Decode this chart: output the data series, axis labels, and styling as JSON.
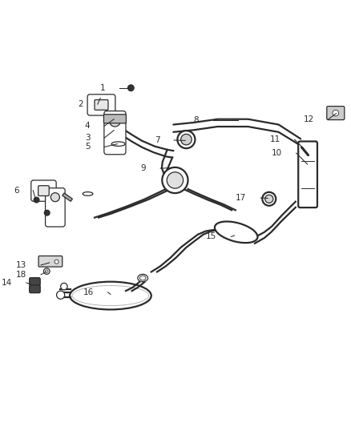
{
  "background_color": "#ffffff",
  "figure_width": 4.38,
  "figure_height": 5.33,
  "dpi": 100,
  "line_color": "#2a2a2a",
  "label_color": "#2a2a2a",
  "label_fontsize": 7.5,
  "lw_main": 1.6,
  "lw_thin": 0.9,
  "leaders": [
    [
      1,
      0.355,
      0.87,
      0.28,
      0.87
    ],
    [
      2,
      0.265,
      0.84,
      0.215,
      0.822
    ],
    [
      3,
      0.305,
      0.745,
      0.235,
      0.723
    ],
    [
      4,
      0.305,
      0.778,
      0.235,
      0.758
    ],
    [
      5,
      0.315,
      0.705,
      0.235,
      0.696
    ],
    [
      6,
      0.075,
      0.538,
      0.025,
      0.568
    ],
    [
      7,
      0.515,
      0.715,
      0.44,
      0.716
    ],
    [
      8,
      0.67,
      0.775,
      0.555,
      0.775
    ],
    [
      9,
      0.48,
      0.635,
      0.4,
      0.633
    ],
    [
      10,
      0.875,
      0.645,
      0.8,
      0.678
    ],
    [
      11,
      0.865,
      0.69,
      0.795,
      0.718
    ],
    [
      12,
      0.96,
      0.795,
      0.895,
      0.778
    ],
    [
      13,
      0.115,
      0.355,
      0.048,
      0.348
    ],
    [
      14,
      0.063,
      0.29,
      0.005,
      0.296
    ],
    [
      15,
      0.66,
      0.435,
      0.608,
      0.432
    ],
    [
      16,
      0.295,
      0.262,
      0.245,
      0.268
    ],
    [
      17,
      0.758,
      0.545,
      0.695,
      0.546
    ],
    [
      18,
      0.105,
      0.328,
      0.048,
      0.32
    ]
  ]
}
